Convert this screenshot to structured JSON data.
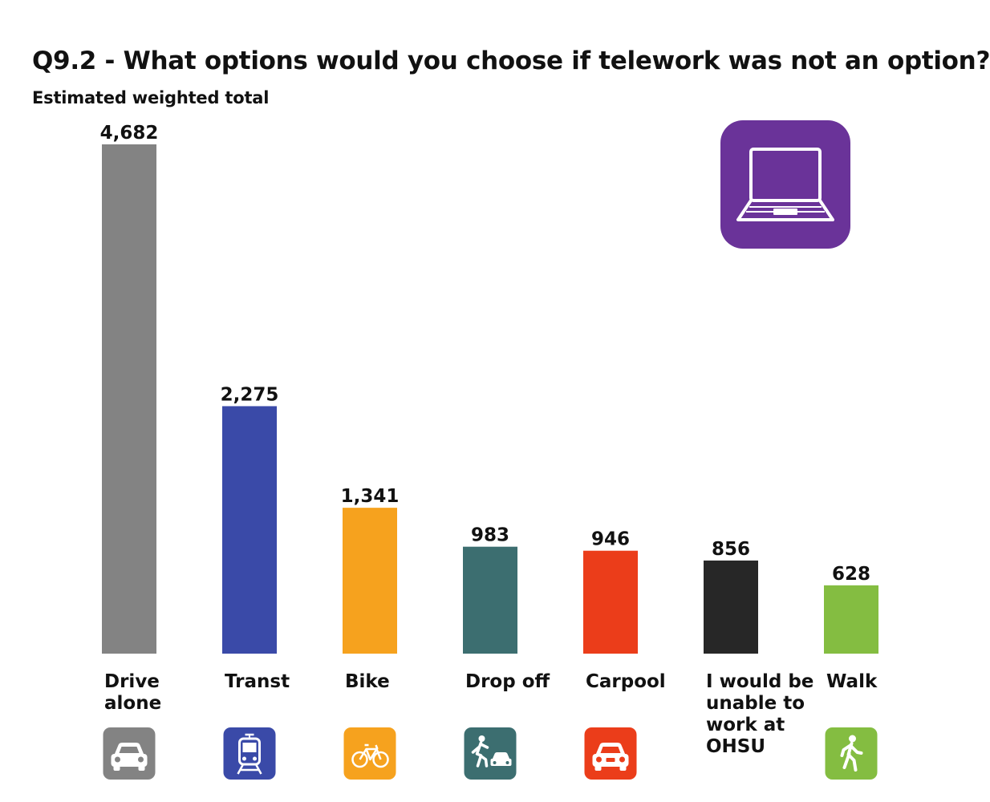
{
  "chart_data": {
    "type": "bar",
    "title": "Q9.2 - What options would you choose if telework was not an option?",
    "subtitle": "Estimated weighted total",
    "categories": [
      "Drive alone",
      "Transt",
      "Bike",
      "Drop off",
      "Carpool",
      "I would be unable to work at OHSU",
      "Walk"
    ],
    "values": [
      4682,
      2275,
      1341,
      983,
      946,
      856,
      628
    ],
    "value_labels": [
      "4,682",
      "2,275",
      "1,341",
      "983",
      "946",
      "856",
      "628"
    ],
    "category_label_lines": [
      [
        "Drive",
        "alone"
      ],
      [
        "Transt"
      ],
      [
        "Bike"
      ],
      [
        "Drop off"
      ],
      [
        "Carpool"
      ],
      [
        "I would be",
        "unable to",
        "work at",
        "OHSU"
      ],
      [
        "Walk"
      ]
    ],
    "colors": [
      "#838383",
      "#3a4aa8",
      "#f6a21e",
      "#3c6e70",
      "#eb3d1a",
      "#272727",
      "#84bd41"
    ],
    "icons": [
      "car-icon",
      "light-rail-icon",
      "bicycle-icon",
      "drop-off-icon",
      "carpool-icon",
      "",
      "walking-person-icon"
    ],
    "ylim": [
      0,
      4682
    ],
    "grid": false,
    "legend": "none"
  },
  "badge": {
    "icon": "laptop-icon",
    "color": "#6a3399"
  }
}
